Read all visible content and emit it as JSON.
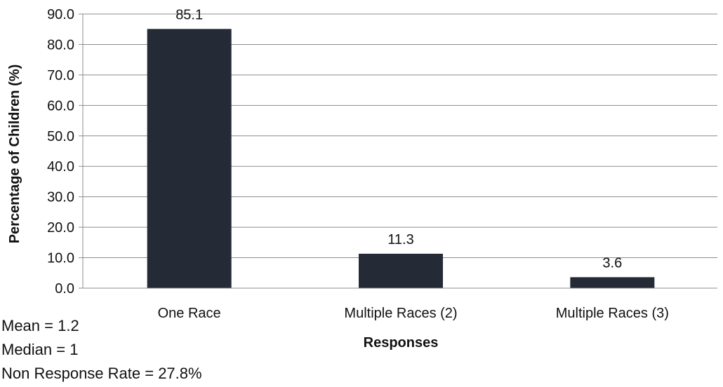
{
  "chart_data": {
    "type": "bar",
    "categories": [
      "One Race",
      "Multiple Races (2)",
      "Multiple Races (3)"
    ],
    "values": [
      85.1,
      11.3,
      3.6
    ],
    "data_labels": [
      "85.1",
      "11.3",
      "3.6"
    ],
    "xlabel": "Responses",
    "ylabel": "Percentage of Children (%)",
    "ylim": [
      0,
      90
    ],
    "yticks": [
      "0.0",
      "10.0",
      "20.0",
      "30.0",
      "40.0",
      "50.0",
      "60.0",
      "70.0",
      "80.0",
      "90.0"
    ],
    "grid": true,
    "bar_color": "#252b36"
  },
  "stats": {
    "mean": "Mean = 1.2",
    "median": "Median = 1",
    "non_response": "Non Response Rate = 27.8%"
  }
}
